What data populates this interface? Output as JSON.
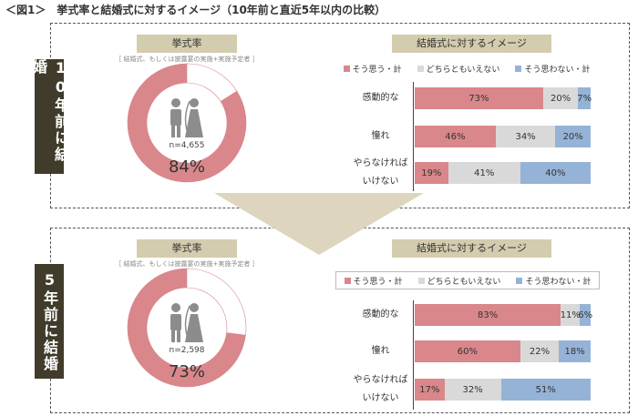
{
  "title": "＜図1＞　挙式率と結婚式に対するイメージ（10年前と直近5年以内の比較）",
  "chart_data": [
    {
      "type": "pie",
      "panel_label": "10年前に結婚",
      "title": "挙式率",
      "subtitle": "［ 結婚式、もしくは披露宴の実施+実施予定者 ］",
      "note": "n=4,655",
      "values": [
        84,
        16
      ],
      "value_labels": [
        "84%",
        null
      ],
      "colors": [
        "#d9878b",
        "#ffffff"
      ]
    },
    {
      "type": "bar",
      "title": "結婚式に対するイメージ",
      "orientation": "horizontal",
      "stacked": true,
      "legend_border": false,
      "categories": [
        "感動的な",
        "憧れ",
        "やらなければいけない"
      ],
      "xlim": [
        0,
        100
      ],
      "series": [
        {
          "name": "そう思う・計",
          "color": "#d9878b",
          "values": [
            73,
            46,
            19
          ],
          "value_labels": [
            "73%",
            "46%",
            "19%"
          ]
        },
        {
          "name": "どちらともいえない",
          "color": "#d9d9d9",
          "values": [
            20,
            34,
            41
          ],
          "value_labels": [
            "20%",
            "34%",
            "41%"
          ]
        },
        {
          "name": "そう思わない・計",
          "color": "#95b3d7",
          "values": [
            7,
            20,
            40
          ],
          "value_labels": [
            "7%",
            "20%",
            "40%"
          ]
        }
      ]
    },
    {
      "type": "pie",
      "panel_label": "5年前に結婚",
      "title": "挙式率",
      "subtitle": "［ 結婚式、もしくは披露宴の実施+実施予定者 ］",
      "note": "n=2,598",
      "values": [
        73,
        27
      ],
      "value_labels": [
        "73%",
        null
      ],
      "colors": [
        "#d9878b",
        "#ffffff"
      ]
    },
    {
      "type": "bar",
      "title": "結婚式に対するイメージ",
      "orientation": "horizontal",
      "stacked": true,
      "legend_border": true,
      "categories": [
        "感動的な",
        "憧れ",
        "やらなければいけない"
      ],
      "xlim": [
        0,
        100
      ],
      "series": [
        {
          "name": "そう思う・計",
          "color": "#d9878b",
          "values": [
            83,
            60,
            17
          ],
          "value_labels": [
            "83%",
            "60%",
            "17%"
          ]
        },
        {
          "name": "どちらともいえない",
          "color": "#d9d9d9",
          "values": [
            11,
            22,
            32
          ],
          "value_labels": [
            "11%",
            "22%",
            "32%"
          ]
        },
        {
          "name": "そう思わない・計",
          "color": "#95b3d7",
          "values": [
            6,
            18,
            51
          ],
          "value_labels": [
            "6%",
            "18%",
            "51%"
          ]
        }
      ]
    }
  ]
}
